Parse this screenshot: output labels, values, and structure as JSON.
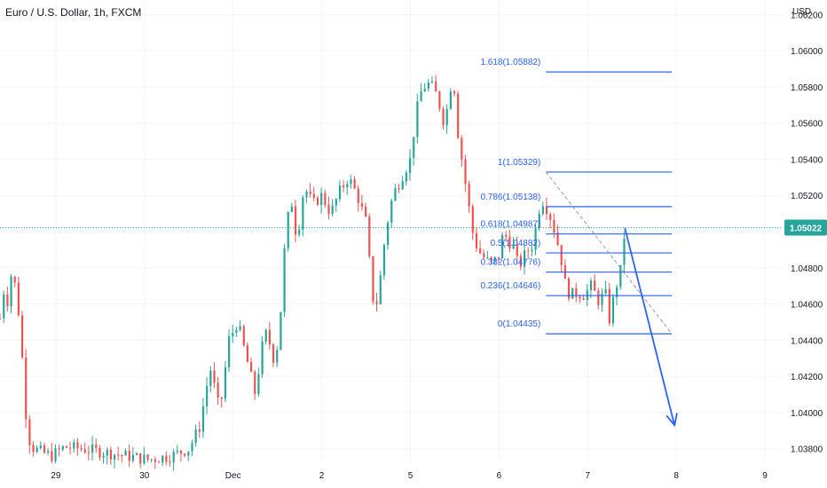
{
  "header": {
    "title": "Euro / U.S. Dollar, 1h, FXCM",
    "currency": "USD"
  },
  "colors": {
    "up": "#26a69a",
    "down": "#ef5350",
    "fib": "#2962ff",
    "grid": "#f0f3fa",
    "axis_text": "#131722",
    "price_line": "#26a69a",
    "price_badge": "#26a69a",
    "diag": "#9598a1"
  },
  "chart_data": {
    "type": "candlestick",
    "title": "Euro / U.S. Dollar, 1h, FXCM",
    "y_axis": {
      "label": "USD",
      "ticks": [
        "1.03800",
        "1.04000",
        "1.04200",
        "1.04400",
        "1.04600",
        "1.04800",
        "1.05000",
        "1.05200",
        "1.05400",
        "1.05600",
        "1.05800",
        "1.06000",
        "1.06200"
      ],
      "ylim": [
        1.0373,
        1.0628
      ]
    },
    "x_axis": {
      "ticks": [
        {
          "label": "29",
          "day": 0
        },
        {
          "label": "30",
          "day": 1
        },
        {
          "label": "Dec",
          "day": 2
        },
        {
          "label": "2",
          "day": 3
        },
        {
          "label": "5",
          "day": 4
        },
        {
          "label": "6",
          "day": 5
        },
        {
          "label": "7",
          "day": 6
        },
        {
          "label": "8",
          "day": 7
        },
        {
          "label": "9",
          "day": 8
        }
      ],
      "xlim": [
        -0.63,
        8.2
      ]
    },
    "grid": true,
    "current_price": "1.05022",
    "candle_anchors": [
      [
        -0.63,
        1.0452
      ],
      [
        -0.58,
        1.047
      ],
      [
        -0.54,
        1.046
      ],
      [
        -0.5,
        1.0478
      ],
      [
        -0.46,
        1.047
      ],
      [
        -0.42,
        1.0455
      ],
      [
        -0.38,
        1.043
      ],
      [
        -0.34,
        1.04
      ],
      [
        -0.3,
        1.0385
      ],
      [
        -0.25,
        1.038
      ],
      [
        -0.15,
        1.0378
      ],
      [
        -0.05,
        1.0376
      ],
      [
        0.1,
        1.0381
      ],
      [
        0.3,
        1.038
      ],
      [
        0.55,
        1.0378
      ],
      [
        0.8,
        1.0376
      ],
      [
        1.05,
        1.0374
      ],
      [
        1.3,
        1.0376
      ],
      [
        1.5,
        1.038
      ],
      [
        1.62,
        1.0392
      ],
      [
        1.74,
        1.0425
      ],
      [
        1.85,
        1.04
      ],
      [
        1.95,
        1.044
      ],
      [
        2.05,
        1.045
      ],
      [
        2.15,
        1.043
      ],
      [
        2.25,
        1.041
      ],
      [
        2.32,
        1.0435
      ],
      [
        2.38,
        1.0445
      ],
      [
        2.45,
        1.043
      ],
      [
        2.52,
        1.044
      ],
      [
        2.56,
        1.048
      ],
      [
        2.6,
        1.05
      ],
      [
        2.65,
        1.052
      ],
      [
        2.72,
        1.0495
      ],
      [
        2.8,
        1.0525
      ],
      [
        2.9,
        1.0515
      ],
      [
        3.0,
        1.052
      ],
      [
        3.1,
        1.051
      ],
      [
        3.2,
        1.0522
      ],
      [
        3.3,
        1.053
      ],
      [
        3.4,
        1.052
      ],
      [
        3.5,
        1.0505
      ],
      [
        3.56,
        1.047
      ],
      [
        3.6,
        1.0455
      ],
      [
        3.65,
        1.047
      ],
      [
        3.72,
        1.05
      ],
      [
        3.8,
        1.052
      ],
      [
        3.9,
        1.053
      ],
      [
        4.0,
        1.054
      ],
      [
        4.05,
        1.056
      ],
      [
        4.1,
        1.0575
      ],
      [
        4.15,
        1.058
      ],
      [
        4.22,
        1.0582
      ],
      [
        4.3,
        1.0575
      ],
      [
        4.38,
        1.056
      ],
      [
        4.43,
        1.0572
      ],
      [
        4.48,
        1.059
      ],
      [
        4.52,
        1.056
      ],
      [
        4.58,
        1.054
      ],
      [
        4.64,
        1.052
      ],
      [
        4.7,
        1.05
      ],
      [
        4.76,
        1.049
      ],
      [
        4.84,
        1.0485
      ],
      [
        4.92,
        1.0482
      ],
      [
        5.0,
        1.0487
      ],
      [
        5.05,
        1.05
      ],
      [
        5.1,
        1.0495
      ],
      [
        5.16,
        1.0492
      ],
      [
        5.22,
        1.048
      ],
      [
        5.3,
        1.0488
      ],
      [
        5.38,
        1.0493
      ],
      [
        5.45,
        1.0512
      ],
      [
        5.48,
        1.0518
      ],
      [
        5.52,
        1.0515
      ],
      [
        5.58,
        1.0508
      ],
      [
        5.64,
        1.0498
      ],
      [
        5.7,
        1.0485
      ],
      [
        5.75,
        1.047
      ],
      [
        5.8,
        1.0465
      ],
      [
        5.88,
        1.0466
      ],
      [
        5.96,
        1.0465
      ],
      [
        6.04,
        1.047
      ],
      [
        6.12,
        1.0462
      ],
      [
        6.2,
        1.0466
      ],
      [
        6.25,
        1.045
      ],
      [
        6.3,
        1.0466
      ],
      [
        6.35,
        1.0475
      ],
      [
        6.38,
        1.048
      ],
      [
        6.42,
        1.0502
      ]
    ],
    "fib_levels": [
      {
        "label": "1.618(1.05882)",
        "price": 1.05882
      },
      {
        "label": "1(1.05329)",
        "price": 1.05329
      },
      {
        "label": "0.786(1.05138)",
        "price": 1.05138
      },
      {
        "label": "0.618(1.04987)",
        "price": 1.04987
      },
      {
        "label": "0.5(1.04882)",
        "price": 1.04882
      },
      {
        "label": "0.382(1.04776)",
        "price": 1.04776
      },
      {
        "label": "0.236(1.04646)",
        "price": 1.04646
      },
      {
        "label": "0(1.04435)",
        "price": 1.04435
      }
    ],
    "fib_range": {
      "day_start": 5.53,
      "day_end": 6.95
    },
    "trend_line": {
      "from": [
        5.53,
        1.05329
      ],
      "to": [
        6.95,
        1.04435
      ]
    },
    "projection_arrow": {
      "from": [
        6.42,
        1.0502
      ],
      "to": [
        6.98,
        1.0393
      ]
    }
  }
}
